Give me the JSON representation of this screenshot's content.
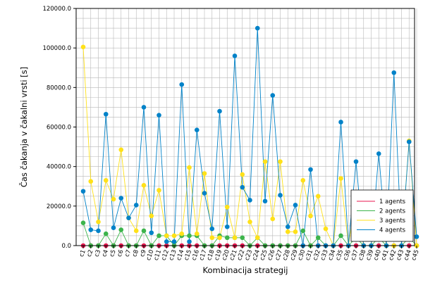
{
  "chart_data": {
    "type": "line",
    "xlabel": "Kombinacija strategij",
    "ylabel": "Čas čakanja v čakalni vrsti [s]",
    "ylim": [
      0,
      120000
    ],
    "yticks": [
      0,
      20000,
      40000,
      60000,
      80000,
      100000,
      120000
    ],
    "ytick_labels": [
      "0.0",
      "20000.0",
      "40000.0",
      "60000.0",
      "80000.0",
      "100000.0",
      "120000.0"
    ],
    "grid": true,
    "legend_position": "bottom-right",
    "categories": [
      "c1",
      "c2",
      "c3",
      "c4",
      "c5",
      "c6",
      "c7",
      "c8",
      "c9",
      "c10",
      "c11",
      "c12",
      "c13",
      "c14",
      "c15",
      "c16",
      "c17",
      "c18",
      "c19",
      "c20",
      "c21",
      "c22",
      "c23",
      "c24",
      "c25",
      "c26",
      "c27",
      "c28",
      "c29",
      "c30",
      "c31",
      "c32",
      "c33",
      "c34",
      "c35",
      "c36",
      "c37",
      "c38",
      "c39",
      "c40",
      "c41",
      "c42",
      "c43",
      "c44",
      "c45"
    ],
    "series": [
      {
        "name": "1 agents",
        "color": "#e8174f",
        "values": [
          0,
          0,
          0,
          0,
          0,
          0,
          0,
          0,
          0,
          0,
          0,
          0,
          0,
          0,
          0,
          0,
          0,
          0,
          0,
          0,
          0,
          0,
          0,
          0,
          0,
          0,
          0,
          0,
          0,
          0,
          0,
          0,
          0,
          0,
          0,
          0,
          0,
          0,
          0,
          0,
          0,
          0,
          0,
          0,
          0
        ]
      },
      {
        "name": "2 agents",
        "color": "#3cb44b",
        "values": [
          11500,
          0,
          0,
          6000,
          0,
          8000,
          0,
          0,
          7500,
          0,
          5000,
          5000,
          0,
          5000,
          5000,
          5000,
          0,
          0,
          5000,
          4000,
          4000,
          4000,
          0,
          4000,
          0,
          0,
          0,
          0,
          0,
          7500,
          0,
          4000,
          0,
          0,
          5000,
          0,
          4000,
          0,
          0,
          4000,
          0,
          0,
          0,
          4000,
          0
        ]
      },
      {
        "name": "3 agents",
        "color": "#ffe119",
        "values": [
          100500,
          32500,
          12000,
          33000,
          23500,
          48500,
          14000,
          7500,
          30500,
          15000,
          28000,
          5000,
          5000,
          6000,
          39500,
          6000,
          36500,
          4000,
          4000,
          19500,
          4000,
          36000,
          12000,
          4000,
          42500,
          13500,
          42500,
          7000,
          7000,
          33000,
          15000,
          25000,
          8500,
          0,
          34000,
          0,
          25000,
          0,
          0,
          27000,
          0,
          0,
          0,
          53000,
          0
        ]
      },
      {
        "name": "4 agents",
        "color": "#0082c8",
        "values": [
          27500,
          8000,
          7500,
          66500,
          9000,
          24000,
          14000,
          20500,
          70000,
          6500,
          66000,
          2000,
          2000,
          81500,
          2000,
          58500,
          26500,
          8500,
          68000,
          9500,
          96000,
          29500,
          23000,
          110000,
          22500,
          76000,
          25500,
          9500,
          20500,
          0,
          38500,
          0,
          0,
          0,
          62500,
          0,
          42500,
          0,
          0,
          46500,
          0,
          87500,
          0,
          52500,
          4500
        ]
      }
    ]
  }
}
